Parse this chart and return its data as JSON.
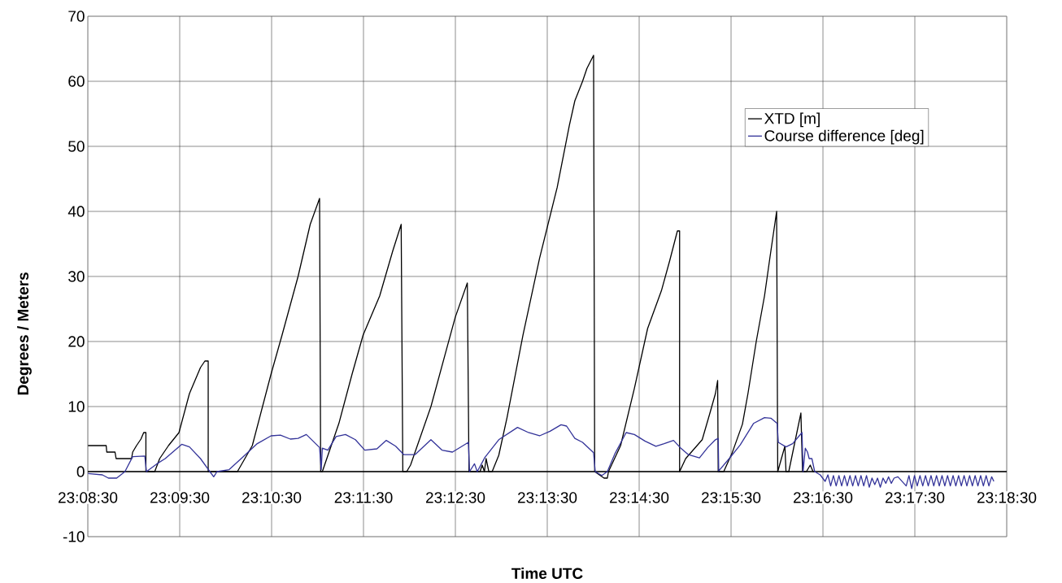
{
  "chart_data": {
    "type": "line",
    "xlabel": "Time UTC",
    "ylabel": "Degrees / Meters",
    "xlim": [
      23.141667,
      23.308333
    ],
    "ylim": [
      -10,
      70
    ],
    "xticks": [
      {
        "value": 23.141667,
        "label": "23:08:30"
      },
      {
        "value": 23.158333,
        "label": "23:09:30"
      },
      {
        "value": 23.175,
        "label": "23:10:30"
      },
      {
        "value": 23.191667,
        "label": "23:11:30"
      },
      {
        "value": 23.208333,
        "label": "23:12:30"
      },
      {
        "value": 23.225,
        "label": "23:13:30"
      },
      {
        "value": 23.241667,
        "label": "23:14:30"
      },
      {
        "value": 23.258333,
        "label": "23:15:30"
      },
      {
        "value": 23.275,
        "label": "23:16:30"
      },
      {
        "value": 23.291667,
        "label": "23:17:30"
      },
      {
        "value": 23.308333,
        "label": "23:18:30"
      }
    ],
    "yticks": [
      -10,
      0,
      10,
      20,
      30,
      40,
      50,
      60,
      70
    ],
    "grid": true,
    "legend": "top right",
    "marker": "none",
    "line_style": "solid",
    "series": [
      {
        "name": "XTD [m]",
        "color": "#000000",
        "x": [
          23.1417,
          23.145,
          23.1451,
          23.1466,
          23.1468,
          23.1496,
          23.1498,
          23.1505,
          23.1513,
          23.1518,
          23.1522,
          23.1522,
          23.1538,
          23.1547,
          23.1563,
          23.1582,
          23.1601,
          23.1621,
          23.1629,
          23.1635,
          23.1635,
          23.1688,
          23.1715,
          23.1749,
          23.1769,
          23.1798,
          23.182,
          23.1837,
          23.1839,
          23.1842,
          23.1872,
          23.1896,
          23.1916,
          23.1946,
          23.197,
          23.1985,
          23.1988,
          23.1995,
          23.2002,
          23.2039,
          23.2064,
          23.2083,
          23.2105,
          23.2108,
          23.2128,
          23.2132,
          23.2136,
          23.2139,
          23.2144,
          23.215,
          23.2162,
          23.2177,
          23.2206,
          23.2236,
          23.2268,
          23.229,
          23.23,
          23.2314,
          23.2322,
          23.2334,
          23.2336,
          23.2353,
          23.2359,
          23.2361,
          23.2383,
          23.2408,
          23.2432,
          23.2457,
          23.2472,
          23.2486,
          23.249,
          23.249,
          23.2501,
          23.2531,
          23.2545,
          23.2555,
          23.2559,
          23.256,
          23.257,
          23.2585,
          23.2604,
          23.2614,
          23.2629,
          23.2644,
          23.2654,
          23.2666,
          23.2668,
          23.2681,
          23.2683,
          23.2688,
          23.271,
          23.2713,
          23.272,
          23.2727,
          23.2732,
          23.2735
        ],
        "values": [
          4,
          4,
          3,
          3,
          2,
          2,
          3,
          4,
          5,
          6,
          6,
          0,
          0,
          2,
          4,
          6,
          12,
          16,
          17,
          17,
          0,
          0,
          4,
          15,
          21,
          30,
          38,
          42,
          0,
          0,
          7.4,
          15,
          21,
          27,
          34,
          38,
          0,
          0,
          1,
          10,
          17.8,
          23.7,
          29,
          0,
          0,
          1,
          0,
          2,
          0,
          0,
          2.5,
          8.3,
          21,
          32.8,
          43.7,
          53.2,
          57,
          60,
          62,
          64,
          0,
          -1,
          -1,
          0,
          4,
          12.8,
          22,
          27.8,
          32.4,
          37,
          37,
          0,
          2,
          4.9,
          9,
          12,
          14,
          0,
          0,
          2.8,
          7.3,
          12,
          20,
          27,
          33,
          40,
          0,
          3.9,
          0,
          0,
          9,
          0,
          0,
          1,
          0,
          0
        ]
      },
      {
        "name": "Course difference [deg]",
        "color": "#333399",
        "x": [
          23.1417,
          23.1443,
          23.1454,
          23.1469,
          23.1484,
          23.1498,
          23.152,
          23.1523,
          23.1542,
          23.1557,
          23.1587,
          23.1601,
          23.1621,
          23.1638,
          23.1645,
          23.1651,
          23.1673,
          23.17,
          23.1724,
          23.1749,
          23.1766,
          23.1784,
          23.1798,
          23.1813,
          23.1837,
          23.184,
          23.1842,
          23.1852,
          23.1867,
          23.1884,
          23.1902,
          23.1919,
          23.1941,
          23.1958,
          23.1975,
          23.199,
          23.201,
          23.2039,
          23.2059,
          23.2078,
          23.2107,
          23.2109,
          23.2118,
          23.2123,
          23.2137,
          23.2162,
          23.2196,
          23.2216,
          23.2236,
          23.2255,
          23.2275,
          23.2285,
          23.23,
          23.2314,
          23.2334,
          23.2337,
          23.2349,
          23.2359,
          23.2373,
          23.2393,
          23.2408,
          23.2427,
          23.2447,
          23.2462,
          23.2479,
          23.2491,
          23.2506,
          23.2526,
          23.2541,
          23.2555,
          23.256,
          23.2561,
          23.258,
          23.26,
          23.2624,
          23.2644,
          23.2656,
          23.2667,
          23.2669,
          23.2683,
          23.2695,
          23.2712,
          23.2714,
          23.2718,
          23.2722,
          23.2725,
          23.273,
          23.2735,
          23.2745,
          23.2754,
          23.2759,
          23.2764,
          23.2769,
          23.2774,
          23.2779,
          23.2784,
          23.2789,
          23.2794,
          23.2799,
          23.2804,
          23.2809,
          23.2814,
          23.2819,
          23.2824,
          23.2829,
          23.2834,
          23.2839,
          23.2844,
          23.2849,
          23.2854,
          23.2859,
          23.2864,
          23.2869,
          23.2874,
          23.2879,
          23.2886,
          23.2901,
          23.2906,
          23.2911,
          23.2916,
          23.2921,
          23.2926,
          23.2931,
          23.2936,
          23.2941,
          23.2946,
          23.2951,
          23.2956,
          23.2961,
          23.2966,
          23.2971,
          23.2976,
          23.2981,
          23.2986,
          23.2991,
          23.2996,
          23.3001,
          23.3006,
          23.3011,
          23.3016,
          23.3021,
          23.3026,
          23.3031,
          23.3036,
          23.3041,
          23.3046,
          23.3051,
          23.3056,
          23.306
        ],
        "values": [
          -0.3,
          -0.5,
          -1,
          -1,
          0,
          2.3,
          2.4,
          0,
          1.2,
          2,
          4.2,
          3.8,
          2,
          0,
          -0.8,
          0,
          0.3,
          2.4,
          4.3,
          5.5,
          5.6,
          5,
          5.1,
          5.7,
          3.7,
          0.3,
          3.6,
          3.3,
          5.4,
          5.7,
          4.9,
          3.3,
          3.5,
          4.8,
          3.9,
          2.6,
          2.6,
          4.9,
          3.3,
          3,
          4.5,
          0,
          1.2,
          0,
          2.2,
          4.9,
          6.8,
          6,
          5.5,
          6.2,
          7.2,
          7,
          5.1,
          4.5,
          2.9,
          0,
          -0.6,
          0,
          2.8,
          6,
          5.7,
          4.7,
          3.9,
          4.3,
          4.8,
          3.7,
          2.6,
          2.1,
          3.7,
          4.9,
          5.1,
          0.1,
          2,
          4.1,
          7.4,
          8.3,
          8.2,
          7.4,
          4.5,
          3.8,
          4.3,
          6,
          0,
          3.6,
          3,
          2,
          2,
          0,
          -0.5,
          -1.5,
          -0.5,
          -2.2,
          -0.6,
          -2.2,
          -0.6,
          -2.2,
          -0.6,
          -2.2,
          -0.6,
          -2.2,
          -0.6,
          -2.2,
          -0.6,
          -2.2,
          -0.6,
          -2.4,
          -1,
          -2,
          -1,
          -2.4,
          -1,
          -1.8,
          -0.8,
          -1.8,
          -1,
          -0.8,
          -2.2,
          -0.6,
          -2.6,
          -0.6,
          -2.2,
          -0.6,
          -2.2,
          -0.6,
          -2.2,
          -0.6,
          -2.2,
          -0.6,
          -2.2,
          -0.6,
          -2.2,
          -0.6,
          -2.2,
          -0.6,
          -2.2,
          -0.6,
          -2.2,
          -0.6,
          -2.2,
          -0.6,
          -2.2,
          -0.6,
          -2.2,
          -0.6,
          -2.2,
          -0.6,
          -2.2,
          -0.8,
          -1.5
        ]
      }
    ]
  }
}
